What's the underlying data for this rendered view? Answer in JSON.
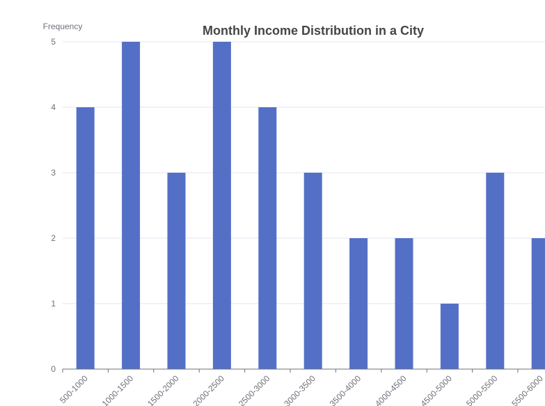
{
  "chart_data": {
    "type": "bar",
    "title": "Monthly Income Distribution in a City",
    "xlabel": "",
    "ylabel": "Frequency",
    "categories": [
      "500-1000",
      "1000-1500",
      "1500-2000",
      "2000-2500",
      "2500-3000",
      "3000-3500",
      "3500-4000",
      "4000-4500",
      "4500-5000",
      "5000-5500",
      "5500-6000"
    ],
    "values": [
      4,
      5,
      3,
      5,
      4,
      3,
      2,
      2,
      1,
      3,
      2
    ],
    "ylim": [
      0,
      5
    ],
    "yticks": [
      "0",
      "1",
      "2",
      "3",
      "4",
      "5"
    ],
    "grid": true,
    "legend": "none"
  },
  "colors": {
    "bar": "#5470c6",
    "grid": "#e0e6f1",
    "axis": "#6e7079",
    "background": "#ffffff",
    "outside": "#000000"
  }
}
